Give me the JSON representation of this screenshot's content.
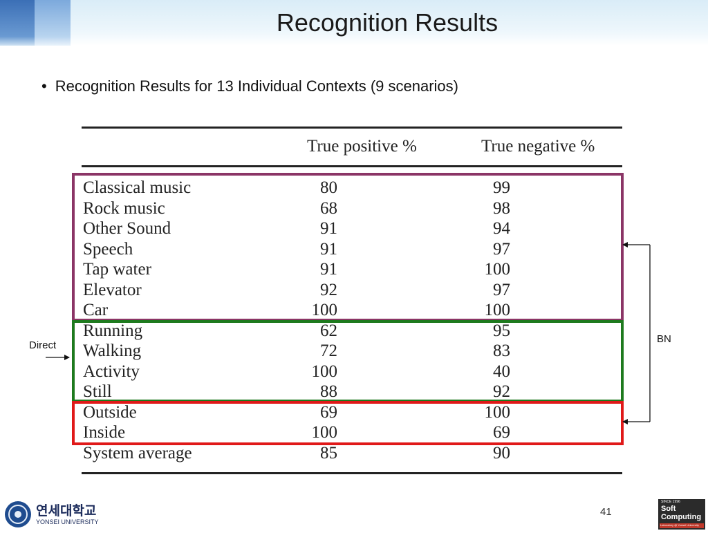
{
  "slide": {
    "title": "Recognition Results",
    "bullet": "Recognition Results for 13 Individual Contexts (9 scenarios)",
    "page_number": "41"
  },
  "table": {
    "headers": [
      "True positive %",
      "True negative %"
    ],
    "rows": [
      {
        "label": "Classical music",
        "tp": "80",
        "tn": "99"
      },
      {
        "label": "Rock music",
        "tp": "68",
        "tn": "98"
      },
      {
        "label": "Other Sound",
        "tp": "91",
        "tn": "94"
      },
      {
        "label": "Speech",
        "tp": "91",
        "tn": "97"
      },
      {
        "label": "Tap water",
        "tp": "91",
        "tn": "100"
      },
      {
        "label": "Elevator",
        "tp": "92",
        "tn": "97"
      },
      {
        "label": "Car",
        "tp": "100",
        "tn": "100"
      },
      {
        "label": "Running",
        "tp": "62",
        "tn": "95"
      },
      {
        "label": "Walking",
        "tp": "72",
        "tn": "83"
      },
      {
        "label": "Activity",
        "tp": "100",
        "tn": "40"
      },
      {
        "label": "Still",
        "tp": "88",
        "tn": "92"
      },
      {
        "label": "Outside",
        "tp": "69",
        "tn": "100"
      },
      {
        "label": "Inside",
        "tp": "100",
        "tn": "69"
      },
      {
        "label": "System average",
        "tp": "85",
        "tn": "90"
      }
    ]
  },
  "annotations": {
    "direct": "Direct",
    "bn": "BN"
  },
  "logos": {
    "left_korean": "연세대학교",
    "left_english": "YONSEI UNIVERSITY",
    "right_since": "SINCE 1996",
    "right_soft": "Soft",
    "right_computing": "Computing",
    "right_tagline": "Laboratory @ Yonsei University"
  },
  "colors": {
    "purple_box": "#8b3566",
    "green_box": "#1e7a1e",
    "red_box": "#e01919"
  }
}
